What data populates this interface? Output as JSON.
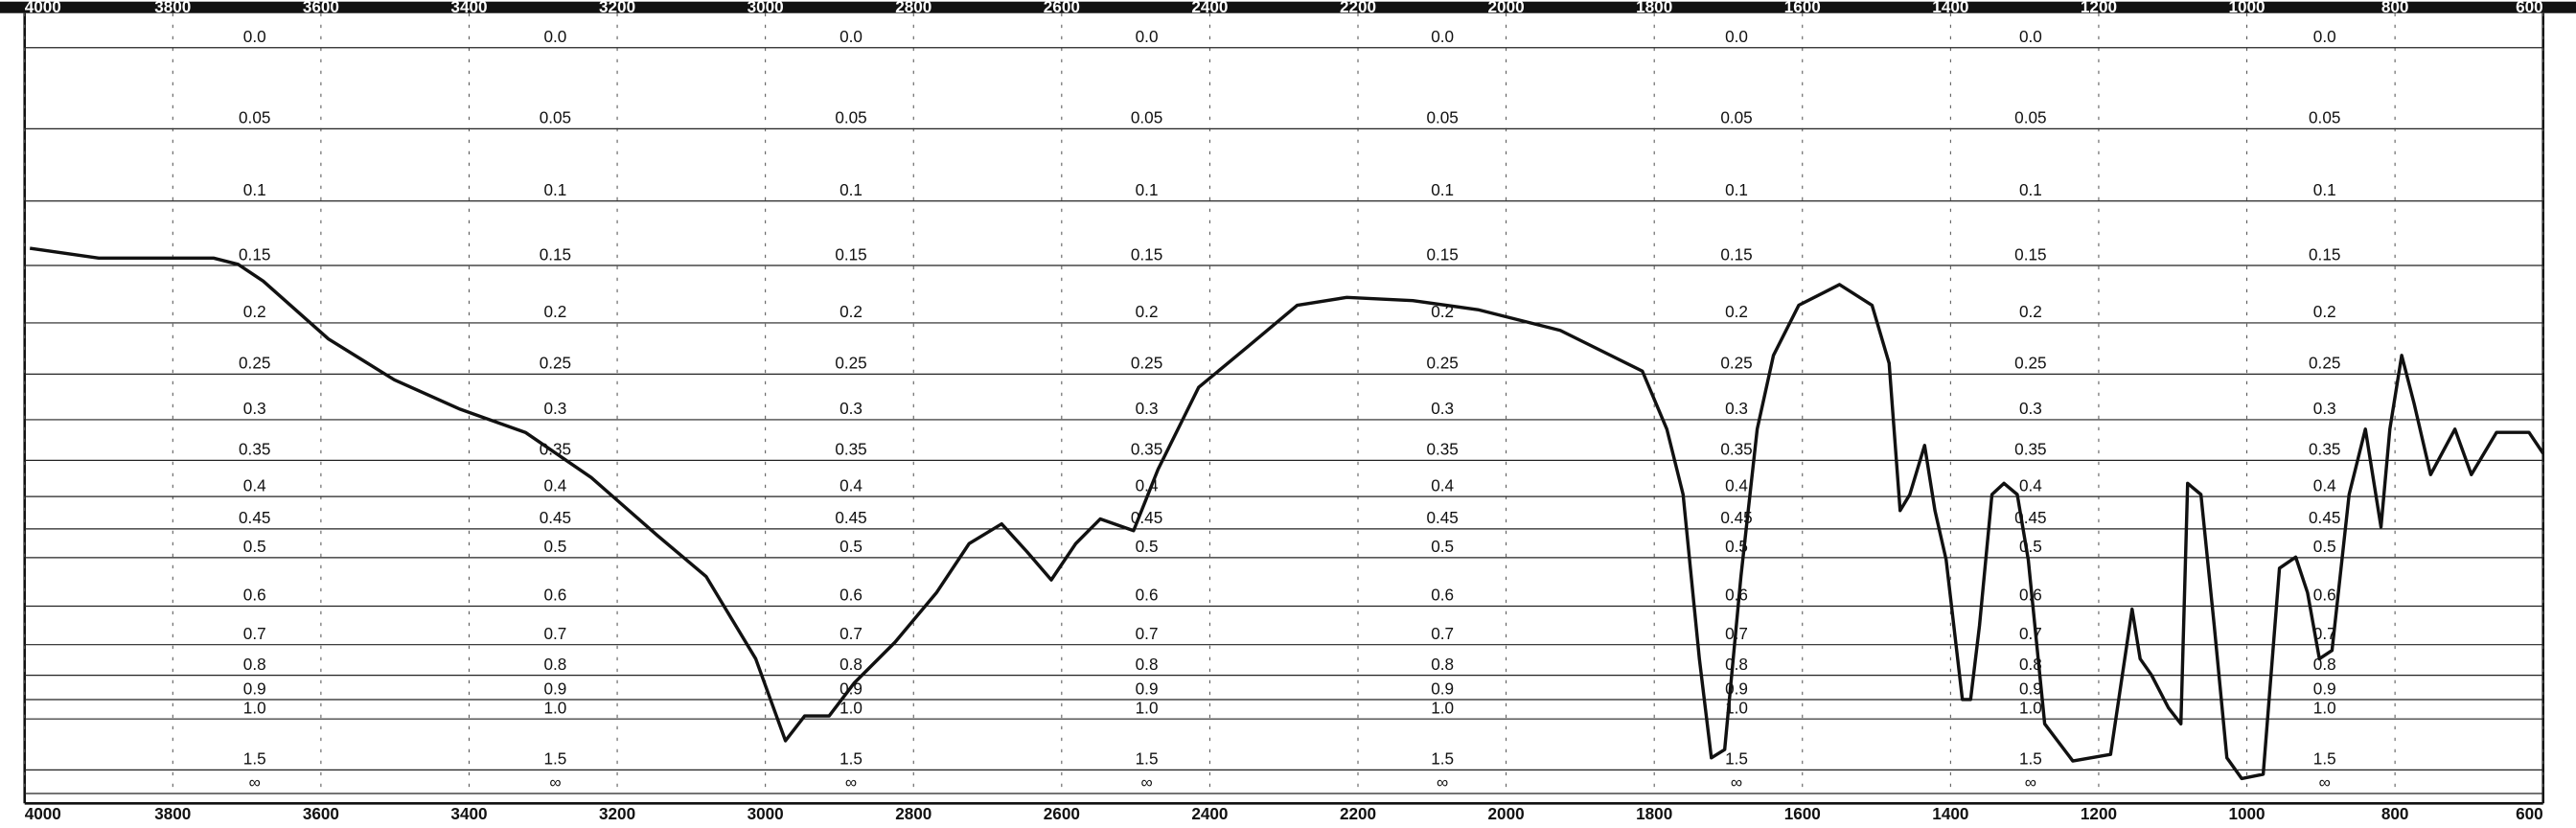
{
  "chart_data": {
    "type": "line",
    "yscale": "transmittance",
    "grid": true,
    "color": "#111111",
    "xlim": [
      4000,
      600
    ],
    "xticks": [
      4000,
      3800,
      3600,
      3400,
      3200,
      3000,
      2800,
      2600,
      2400,
      2200,
      2000,
      1800,
      1600,
      1400,
      1200,
      1000,
      800,
      600
    ],
    "ylim": [
      0,
      "Infinity"
    ],
    "yticks": [
      {
        "value": 0,
        "label": "0.0"
      },
      0.05,
      0.1,
      0.15,
      0.2,
      0.25,
      0.3,
      0.35,
      0.4,
      0.45,
      0.5,
      0.6,
      0.7,
      0.8,
      0.9,
      {
        "value": 1,
        "label": "1.0"
      },
      1.5,
      {
        "value": "Infinity",
        "label": "∞"
      }
    ],
    "x": [
      3993,
      3900,
      3812,
      3745,
      3712,
      3678,
      3590,
      3501,
      3412,
      3324,
      3235,
      3146,
      3080,
      3013,
      2973,
      2947,
      2914,
      2880,
      2825,
      2769,
      2725,
      2681,
      2647,
      2614,
      2581,
      2548,
      2503,
      2470,
      2415,
      2348,
      2282,
      2215,
      2126,
      2038,
      1927,
      1816,
      1783,
      1761,
      1739,
      1723,
      1705,
      1683,
      1661,
      1639,
      1605,
      1550,
      1506,
      1483,
      1468,
      1455,
      1435,
      1421,
      1406,
      1384,
      1373,
      1361,
      1344,
      1328,
      1310,
      1295,
      1273,
      1235,
      1184,
      1155,
      1144,
      1129,
      1106,
      1089,
      1080,
      1062,
      1044,
      1027,
      1007,
      978,
      956,
      934,
      918,
      902,
      885,
      862,
      840,
      819,
      807,
      791,
      774,
      752,
      719,
      697,
      663,
      619,
      600
    ],
    "values": [
      0.136,
      0.144,
      0.144,
      0.144,
      0.149,
      0.163,
      0.215,
      0.256,
      0.288,
      0.315,
      0.373,
      0.461,
      0.536,
      0.743,
      1.15,
      0.983,
      0.983,
      0.829,
      0.693,
      0.57,
      0.475,
      0.442,
      0.489,
      0.543,
      0.475,
      0.434,
      0.453,
      0.362,
      0.264,
      0.222,
      0.184,
      0.177,
      0.18,
      0.188,
      0.207,
      0.247,
      0.311,
      0.397,
      0.743,
      1.32,
      1.23,
      0.536,
      0.311,
      0.231,
      0.184,
      0.166,
      0.184,
      0.239,
      0.421,
      0.397,
      0.331,
      0.421,
      0.504,
      0.9,
      0.9,
      0.648,
      0.397,
      0.381,
      0.397,
      0.504,
      1.03,
      1.36,
      1.28,
      0.607,
      0.743,
      0.798,
      0.939,
      1.03,
      0.381,
      0.397,
      0.648,
      1.32,
      1.7,
      1.59,
      0.52,
      0.499,
      0.57,
      0.743,
      0.717,
      0.397,
      0.311,
      0.447,
      0.311,
      0.231,
      0.282,
      0.369,
      0.311,
      0.369,
      0.315,
      0.315,
      0.341
    ]
  }
}
